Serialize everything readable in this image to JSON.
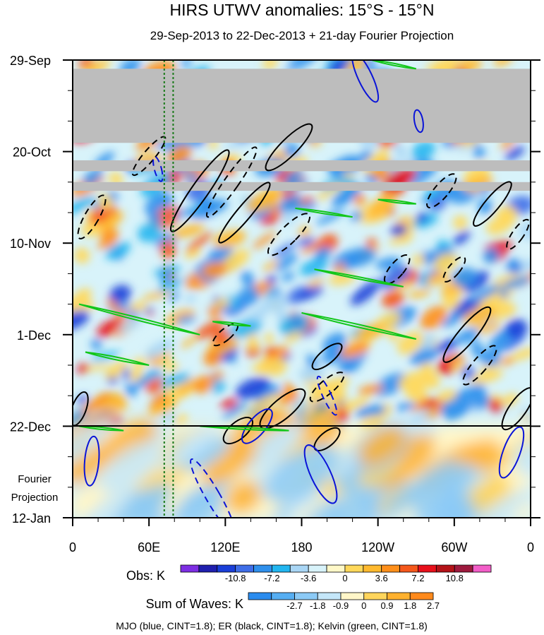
{
  "chart_data": {
    "type": "heatmap",
    "title": "HIRS UTWV anomalies: 15°S - 15°N",
    "subtitle": "29-Sep-2013 to 22-Dec-2013 + 21-day Fourier Projection",
    "x_ticks": [
      "0",
      "60E",
      "120E",
      "180",
      "120W",
      "60W",
      "0"
    ],
    "x_range_deg_east": [
      0,
      360
    ],
    "y_ticks": [
      "29-Sep",
      "20-Oct",
      "10-Nov",
      "1-Dec",
      "22-Dec",
      "12-Jan"
    ],
    "y_tick_days": [
      0,
      21,
      42,
      63,
      84,
      105
    ],
    "projection_label_line1": "Fourier",
    "projection_label_line2": "Projection",
    "projection_start_day": 84,
    "reference_longitudes_deg": [
      72,
      79
    ],
    "missing_data_days": [
      [
        2,
        19
      ],
      [
        23,
        25.5
      ],
      [
        28,
        30
      ]
    ],
    "obs_colorbar": {
      "label": "Obs: K",
      "levels": [
        "-10.8",
        "-7.2",
        "-3.6",
        "0",
        "3.6",
        "7.2",
        "10.8"
      ],
      "colors": [
        "#7d2ee3",
        "#1f1fae",
        "#1a3fd8",
        "#3f6ee8",
        "#2f90ec",
        "#22b6f0",
        "#a9d6f5",
        "#d8f3fa",
        "#fff8c8",
        "#ffd85a",
        "#ffb92e",
        "#ff8f1a",
        "#f5581b",
        "#e8101b",
        "#b41318",
        "#9e1a3e",
        "#f25ec8"
      ]
    },
    "waves_colorbar": {
      "label": "Sum of Waves: K",
      "levels": [
        "-2.7",
        "-1.8",
        "-0.9",
        "0",
        "0.9",
        "1.8",
        "2.7"
      ],
      "colors": [
        "#2b8cee",
        "#56aef2",
        "#8ccaf6",
        "#c4e6f9",
        "#fff6c8",
        "#ffd55b",
        "#ffb12e",
        "#ff8a1c"
      ]
    },
    "legend": "MJO (blue, CINT=1.8); ER (black, CINT=1.8); Kelvin (green, CINT=1.8)",
    "series": [
      {
        "name": "MJO",
        "color": "#0a14d8"
      },
      {
        "name": "ER",
        "color": "#000000"
      },
      {
        "name": "Kelvin",
        "color": "#12c61a"
      }
    ]
  }
}
